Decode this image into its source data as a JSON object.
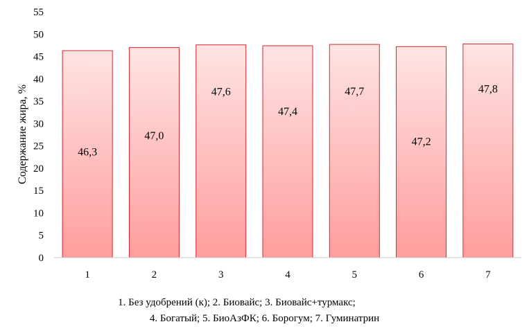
{
  "chart_data": {
    "type": "bar",
    "categories": [
      "1",
      "2",
      "3",
      "4",
      "5",
      "6",
      "7"
    ],
    "values": [
      46.3,
      47.0,
      47.6,
      47.4,
      47.7,
      47.2,
      47.8
    ],
    "data_labels": [
      "46,3",
      "47,0",
      "47,6",
      "47,4",
      "47,7",
      "47,2",
      "47,8"
    ],
    "ylabel": "Содержание жира, %",
    "ylim": [
      0,
      55
    ],
    "yticks": [
      0,
      5,
      10,
      15,
      20,
      25,
      30,
      35,
      40,
      45,
      50,
      55
    ],
    "grid": false,
    "bar_fill_top": "#ffe4e4",
    "bar_fill_bottom": "#ff9d9d",
    "bar_stroke": "#d9262c",
    "legend_lines": [
      "1. Без удобрений (к); 2. Биовайс; 3. Биовайс+турмакс;",
      "4. Богатый; 5. БиоАзФК; 6. Борогум; 7. Гуминатрин"
    ]
  }
}
